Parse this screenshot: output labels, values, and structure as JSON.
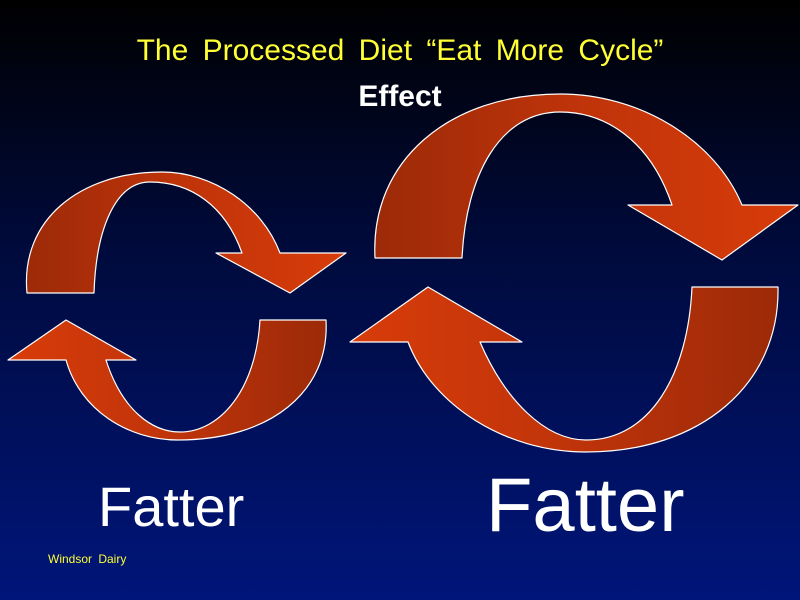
{
  "slide": {
    "title": "The  Processed  Diet  “Eat  More  Cycle”",
    "subtitle": "Effect",
    "label_small": "Fatter",
    "label_large": "Fatter",
    "footer": "Windsor  Dairy"
  },
  "colors": {
    "arrow_light": "#d23a0a",
    "arrow_dark": "#9c2a08",
    "title": "#ffff33",
    "text": "#ffffff"
  }
}
